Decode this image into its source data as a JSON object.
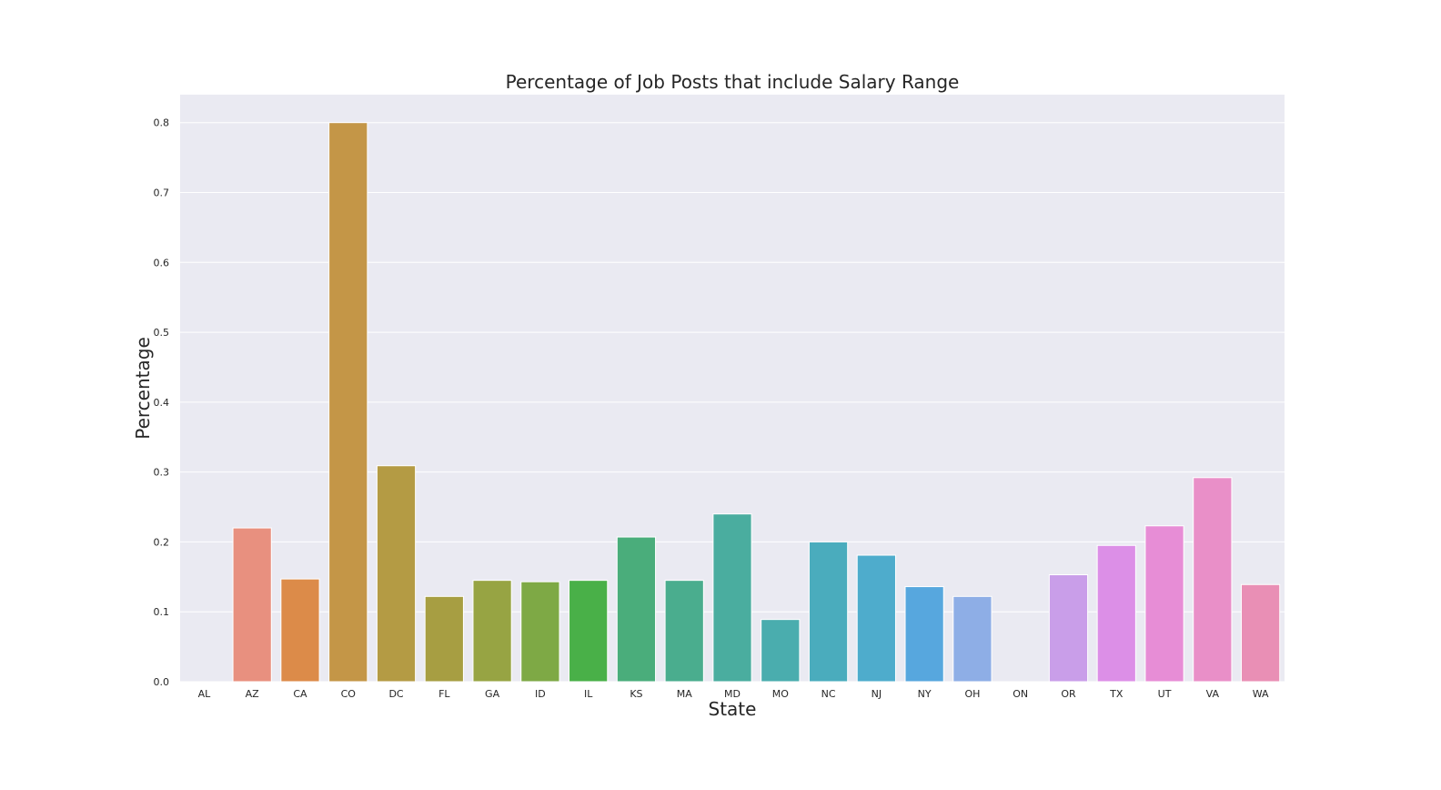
{
  "chart_data": {
    "type": "bar",
    "title": "Percentage of Job Posts that include Salary Range",
    "xlabel": "State",
    "ylabel": "Percentage",
    "categories": [
      "AL",
      "AZ",
      "CA",
      "CO",
      "DC",
      "FL",
      "GA",
      "ID",
      "IL",
      "KS",
      "MA",
      "MD",
      "MO",
      "NC",
      "NJ",
      "NY",
      "OH",
      "ON",
      "OR",
      "TX",
      "UT",
      "VA",
      "WA"
    ],
    "values": [
      0.0,
      0.22,
      0.147,
      0.8,
      0.309,
      0.122,
      0.145,
      0.143,
      0.145,
      0.207,
      0.145,
      0.24,
      0.089,
      0.2,
      0.181,
      0.136,
      0.122,
      0.0,
      0.153,
      0.195,
      0.223,
      0.292,
      0.139
    ],
    "colors": [
      "#f77189",
      "#e8907f",
      "#dc8b49",
      "#c49647",
      "#b49b44",
      "#a79e42",
      "#97a443",
      "#7ea945",
      "#49b048",
      "#4aad7b",
      "#4aad8e",
      "#4aad9f",
      "#4aadae",
      "#4aacbd",
      "#4eaccc",
      "#57a7de",
      "#8eaee6",
      "#b8a3e8",
      "#c99ee9",
      "#dc8fe7",
      "#e78dd6",
      "#e98fc8",
      "#e98fb5"
    ],
    "yticks": [
      "0.0",
      "0.1",
      "0.2",
      "0.3",
      "0.4",
      "0.5",
      "0.6",
      "0.7",
      "0.8"
    ],
    "ylim": [
      0,
      0.84
    ],
    "grid": true,
    "style": "seaborn-darkgrid",
    "background_color": "#eaeaf2"
  }
}
